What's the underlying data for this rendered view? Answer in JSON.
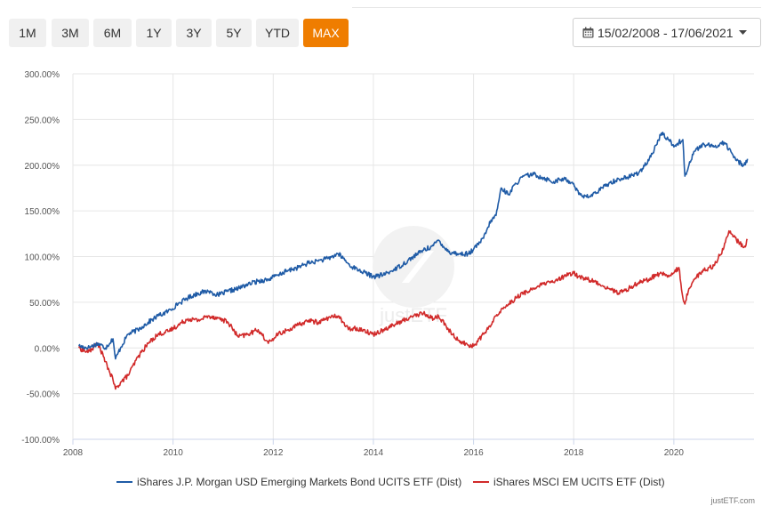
{
  "toolbar": {
    "ranges": [
      "1M",
      "3M",
      "6M",
      "1Y",
      "3Y",
      "5Y",
      "YTD",
      "MAX"
    ],
    "active_range": "MAX",
    "date_range": "15/02/2008 - 17/06/2021"
  },
  "colors": {
    "accent": "#ef7d00",
    "series_blue": "#1f5ba6",
    "series_red": "#d12a2a",
    "grid": "#e6e6e6",
    "axis": "#ccd6eb"
  },
  "watermark": "justETF",
  "credit": "justETF.com",
  "chart_data": {
    "type": "line",
    "title": "",
    "xlabel": "",
    "ylabel": "",
    "xlim": [
      2008,
      2021.6
    ],
    "ylim": [
      -100,
      300
    ],
    "y_ticks": [
      -100,
      -50,
      0,
      50,
      100,
      150,
      200,
      250,
      300
    ],
    "y_tick_labels": [
      "-100.00%",
      "-50.00%",
      "0.00%",
      "50.00%",
      "100.00%",
      "150.00%",
      "200.00%",
      "250.00%",
      "300.00%"
    ],
    "x_ticks": [
      2008,
      2010,
      2012,
      2014,
      2016,
      2018,
      2020
    ],
    "x_tick_labels": [
      "2008",
      "2010",
      "2012",
      "2014",
      "2016",
      "2018",
      "2020"
    ],
    "grid": true,
    "legend_position": "bottom-center",
    "series": [
      {
        "name": "iShares J.P. Morgan USD Emerging Markets Bond UCITS ETF (Dist)",
        "color": "#1f5ba6",
        "x": [
          2008.12,
          2008.3,
          2008.5,
          2008.65,
          2008.8,
          2008.85,
          2008.95,
          2009.1,
          2009.3,
          2009.5,
          2009.7,
          2009.9,
          2010.1,
          2010.3,
          2010.5,
          2010.7,
          2010.9,
          2011.1,
          2011.3,
          2011.5,
          2011.7,
          2011.9,
          2012.1,
          2012.3,
          2012.5,
          2012.7,
          2012.9,
          2013.1,
          2013.3,
          2013.4,
          2013.5,
          2013.6,
          2013.8,
          2014.0,
          2014.2,
          2014.4,
          2014.6,
          2014.8,
          2015.0,
          2015.2,
          2015.3,
          2015.5,
          2015.7,
          2015.9,
          2016.0,
          2016.2,
          2016.35,
          2016.45,
          2016.55,
          2016.7,
          2016.85,
          2017.0,
          2017.2,
          2017.4,
          2017.6,
          2017.8,
          2018.0,
          2018.1,
          2018.3,
          2018.5,
          2018.7,
          2018.9,
          2019.1,
          2019.3,
          2019.5,
          2019.65,
          2019.75,
          2019.9,
          2020.0,
          2020.1,
          2020.18,
          2020.22,
          2020.3,
          2020.4,
          2020.6,
          2020.8,
          2021.0,
          2021.1,
          2021.25,
          2021.4,
          2021.47
        ],
        "values": [
          2,
          0,
          5,
          0,
          10,
          -12,
          0,
          15,
          20,
          28,
          35,
          40,
          48,
          55,
          60,
          62,
          58,
          62,
          65,
          70,
          73,
          75,
          80,
          85,
          88,
          93,
          95,
          98,
          103,
          98,
          92,
          88,
          83,
          78,
          80,
          85,
          92,
          100,
          107,
          112,
          118,
          105,
          103,
          103,
          108,
          120,
          140,
          145,
          175,
          168,
          180,
          188,
          190,
          186,
          182,
          185,
          180,
          168,
          165,
          172,
          180,
          185,
          187,
          192,
          205,
          222,
          235,
          228,
          220,
          225,
          228,
          188,
          200,
          215,
          223,
          220,
          225,
          218,
          205,
          200,
          207
        ]
      },
      {
        "name": "iShares MSCI EM UCITS ETF (Dist)",
        "color": "#d12a2a",
        "x": [
          2008.12,
          2008.3,
          2008.5,
          2008.65,
          2008.8,
          2008.85,
          2008.95,
          2009.1,
          2009.3,
          2009.5,
          2009.7,
          2009.9,
          2010.1,
          2010.3,
          2010.5,
          2010.7,
          2010.9,
          2011.1,
          2011.3,
          2011.5,
          2011.7,
          2011.9,
          2012.1,
          2012.3,
          2012.5,
          2012.7,
          2012.9,
          2013.1,
          2013.3,
          2013.4,
          2013.5,
          2013.6,
          2013.8,
          2014.0,
          2014.2,
          2014.4,
          2014.6,
          2014.8,
          2015.0,
          2015.2,
          2015.3,
          2015.5,
          2015.7,
          2015.9,
          2016.0,
          2016.2,
          2016.35,
          2016.45,
          2016.55,
          2016.7,
          2016.85,
          2017.0,
          2017.2,
          2017.4,
          2017.6,
          2017.8,
          2018.0,
          2018.1,
          2018.3,
          2018.5,
          2018.7,
          2018.9,
          2019.1,
          2019.3,
          2019.5,
          2019.65,
          2019.75,
          2019.9,
          2020.0,
          2020.1,
          2020.18,
          2020.22,
          2020.3,
          2020.4,
          2020.6,
          2020.8,
          2021.0,
          2021.1,
          2021.25,
          2021.4,
          2021.47
        ],
        "values": [
          0,
          -5,
          5,
          -15,
          -35,
          -45,
          -38,
          -30,
          -10,
          5,
          15,
          18,
          25,
          32,
          30,
          35,
          33,
          28,
          12,
          15,
          20,
          5,
          15,
          20,
          25,
          30,
          28,
          33,
          35,
          28,
          20,
          22,
          20,
          15,
          20,
          25,
          30,
          35,
          38,
          32,
          35,
          20,
          8,
          3,
          2,
          15,
          25,
          35,
          42,
          48,
          55,
          60,
          65,
          70,
          72,
          78,
          82,
          78,
          75,
          70,
          65,
          60,
          65,
          72,
          75,
          80,
          82,
          78,
          82,
          88,
          55,
          48,
          65,
          75,
          85,
          90,
          110,
          128,
          118,
          110,
          118
        ]
      }
    ]
  }
}
